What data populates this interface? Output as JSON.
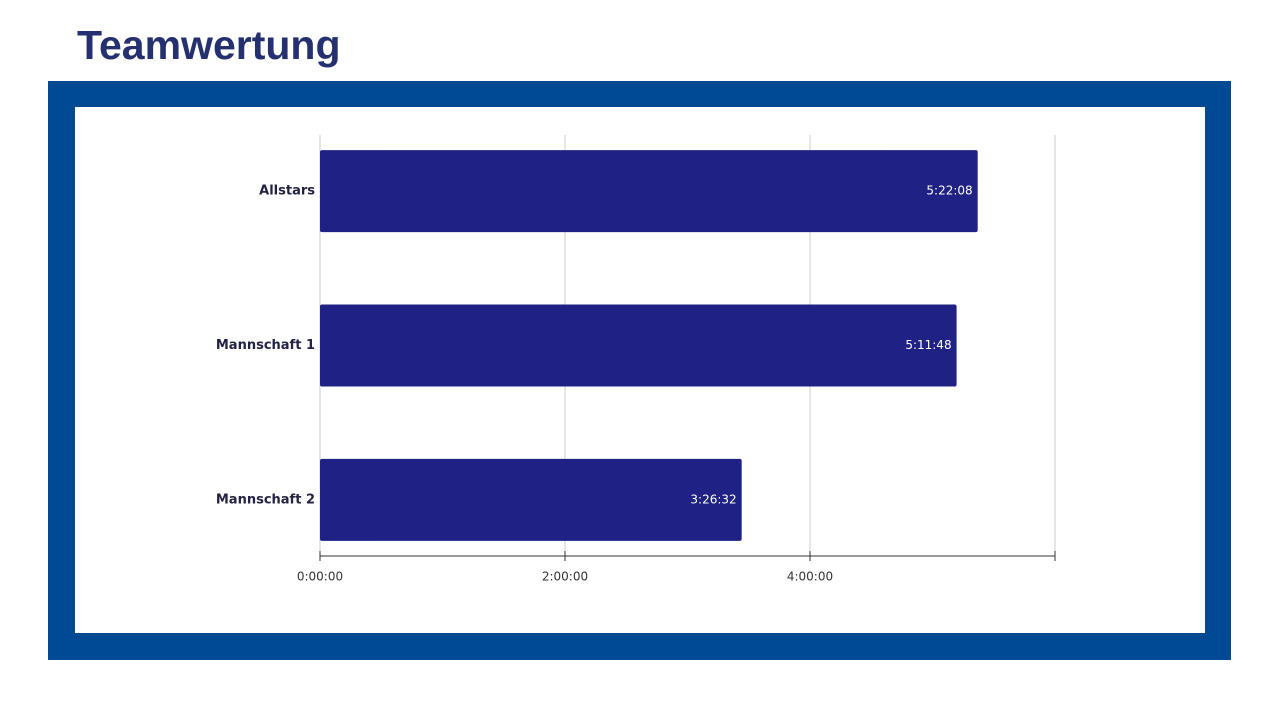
{
  "chart_data": {
    "type": "bar",
    "orientation": "horizontal",
    "title": "Teamwertung",
    "categories": [
      "Allstars",
      "Mannschaft 1",
      "Mannschaft 2"
    ],
    "values": [
      19328,
      18708,
      12392
    ],
    "value_labels": [
      "5:22:08",
      "5:11:48",
      "3:26:32"
    ],
    "color": "#1f2185",
    "xlim": [
      0,
      21600
    ],
    "xticks": [
      {
        "value": 0,
        "label": "0:00:00"
      },
      {
        "value": 7200,
        "label": "2:00:00"
      },
      {
        "value": 14400,
        "label": "4:00:00"
      }
    ],
    "grid": true
  }
}
